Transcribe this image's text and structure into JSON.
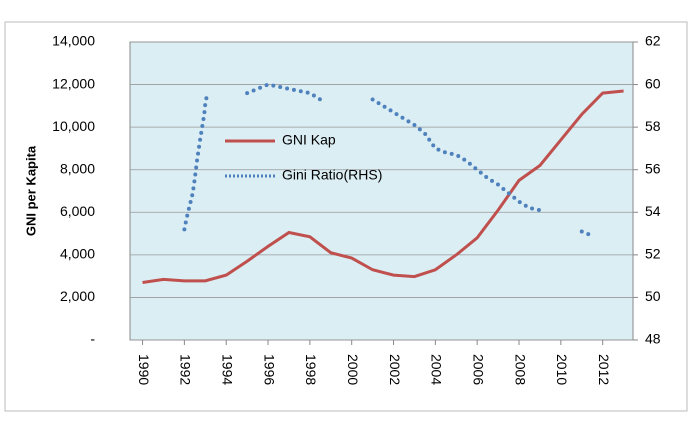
{
  "chart_data": {
    "type": "line",
    "y_label": "GNI per Kapita",
    "xlim": [
      1989.4,
      2013.45
    ],
    "xticks": [
      1990,
      1992,
      1994,
      1996,
      1998,
      2000,
      2002,
      2004,
      2006,
      2008,
      2010,
      2012
    ],
    "ylim": [
      0,
      14000
    ],
    "yticks": [
      {
        "value": 0,
        "label": "-"
      },
      {
        "value": 2000,
        "label": "2,000"
      },
      {
        "value": 4000,
        "label": "4,000"
      },
      {
        "value": 6000,
        "label": "6,000"
      },
      {
        "value": 8000,
        "label": "8,000"
      },
      {
        "value": 10000,
        "label": "10,000"
      },
      {
        "value": 12000,
        "label": "12,000"
      },
      {
        "value": 14000,
        "label": "14,000"
      }
    ],
    "y2lim": [
      48,
      62
    ],
    "y2ticks": [
      48,
      50,
      52,
      54,
      56,
      58,
      60,
      62
    ],
    "grid": true,
    "series": [
      {
        "name": "GNI Kap",
        "color": "#c0504d",
        "style": "solid",
        "x": [
          1990,
          1991,
          1992,
          1993,
          1994,
          1995,
          1996,
          1997,
          1998,
          1999,
          2000,
          2001,
          2002,
          2003,
          2004,
          2005,
          2006,
          2007,
          2008,
          2009,
          2010,
          2011,
          2012,
          2013
        ],
        "values": [
          2700,
          2850,
          2780,
          2780,
          3050,
          3700,
          4400,
          5050,
          4850,
          4100,
          3850,
          3300,
          3050,
          2980,
          3300,
          4000,
          4800,
          6100,
          7500,
          8200,
          9400,
          10600,
          11600,
          11700
        ]
      },
      {
        "name": "Gini Ratio(RHS)",
        "color": "#4f81bd",
        "style": "dotted",
        "axis": "y2",
        "x": [
          1992.0,
          1992.1,
          1992.25,
          1992.4,
          1992.5,
          1992.6,
          1992.75,
          1992.85,
          1992.95,
          1993.0,
          1993.1,
          1994.0,
          1995.0,
          1995.5,
          1996.0,
          1996.5,
          1997.0,
          1997.5,
          1998.0,
          1998.5,
          2000.0,
          2001.0,
          2001.5,
          2002.0,
          2002.5,
          2003.0,
          2003.5,
          2004.0,
          2004.5,
          2005.0,
          2005.5,
          2006.0,
          2006.5,
          2007.0,
          2007.5,
          2008.0,
          2008.5,
          2009.0,
          2010.0,
          2011.0,
          2011.5
        ],
        "values": [
          53.2,
          53.7,
          54.3,
          54.9,
          55.6,
          56.4,
          57.4,
          58.0,
          58.6,
          59.1,
          59.6,
          null,
          59.6,
          59.8,
          60.0,
          59.9,
          59.8,
          59.7,
          59.6,
          59.3,
          null,
          59.3,
          59.0,
          58.7,
          58.4,
          58.1,
          57.7,
          57.0,
          56.8,
          56.7,
          56.4,
          56.0,
          55.6,
          55.3,
          54.9,
          54.5,
          54.2,
          54.1,
          null,
          53.1,
          52.9
        ]
      }
    ]
  }
}
